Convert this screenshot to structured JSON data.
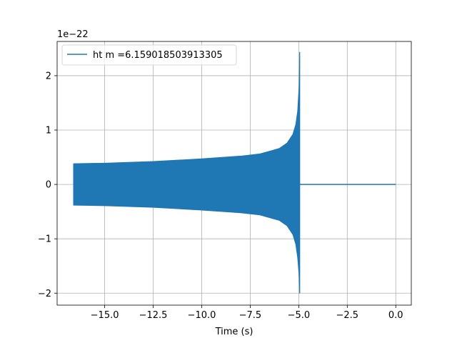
{
  "chart_data": {
    "type": "line",
    "xlabel": "Time (s)",
    "ylabel": "",
    "y_offset_text": "1e−22",
    "xlim": [
      -17.45,
      0.8
    ],
    "ylim": [
      -2.22,
      2.63
    ],
    "x_ticks": [
      -15.0,
      -12.5,
      -10.0,
      -7.5,
      -5.0,
      -2.5,
      0.0
    ],
    "x_tick_labels": [
      "−15.0",
      "−12.5",
      "−10.0",
      "−7.5",
      "−5.0",
      "−2.5",
      "0.0"
    ],
    "y_ticks": [
      -2,
      -1,
      0,
      1,
      2
    ],
    "y_tick_labels": [
      "−2",
      "−1",
      "0",
      "1",
      "2"
    ],
    "grid": true,
    "legend_position": "upper-left",
    "series": [
      {
        "name": "ht m =6.159018503913305",
        "color": "#1f77b4",
        "signal_start": -16.6,
        "merger_time": -4.95,
        "signal_end": 0.0,
        "envelope": {
          "x": [
            -16.6,
            -15.0,
            -12.5,
            -10.0,
            -8.0,
            -7.0,
            -6.0,
            -5.6,
            -5.3,
            -5.15,
            -5.05,
            -4.97,
            -4.95
          ],
          "upper": [
            0.38,
            0.39,
            0.42,
            0.47,
            0.52,
            0.56,
            0.66,
            0.76,
            0.92,
            1.1,
            1.35,
            1.85,
            2.43
          ],
          "lower": [
            -0.38,
            -0.39,
            -0.42,
            -0.47,
            -0.52,
            -0.56,
            -0.66,
            -0.76,
            -0.92,
            -1.1,
            -1.35,
            -1.7,
            -2.0
          ]
        },
        "post_merger_value": 0.0
      }
    ]
  }
}
